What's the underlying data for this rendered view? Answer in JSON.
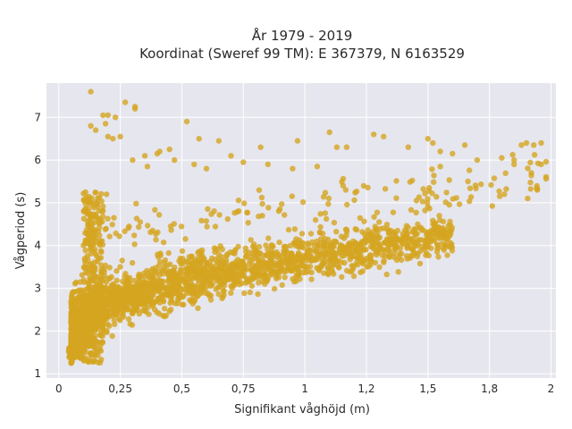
{
  "chart_data": {
    "type": "scatter",
    "title_line1": "År 1979 - 2019",
    "title_line2": "Koordinat (Sweref 99 TM): E 367379, N 6163529",
    "xlabel": "Signifikant våghöjd (m)",
    "ylabel": "Vågperiod (s)",
    "xlim": [
      -0.05,
      2.02
    ],
    "ylim": [
      0.9,
      7.8
    ],
    "x_ticks": [
      0,
      0.25,
      0.5,
      0.75,
      1,
      1.25,
      1.5,
      1.75,
      2
    ],
    "x_tick_labels": [
      "0",
      "0,25",
      "0,5",
      "0,75",
      "1",
      "1,2",
      "1,5",
      "1,8",
      "2"
    ],
    "y_ticks": [
      1,
      2,
      3,
      4,
      5,
      6,
      7
    ],
    "y_tick_labels": [
      "1",
      "2",
      "3",
      "4",
      "5",
      "6",
      "7"
    ],
    "grid": true,
    "colors": {
      "marker": "#d4a520",
      "plot_background": "#e6e6ee",
      "grid": "#ffffff"
    },
    "series": [
      {
        "outliers": [
          [
            0.13,
            7.6
          ],
          [
            0.27,
            7.35
          ],
          [
            0.31,
            7.25
          ],
          [
            0.31,
            7.2
          ],
          [
            0.18,
            7.05
          ],
          [
            0.2,
            7.05
          ],
          [
            0.23,
            7.0
          ],
          [
            0.13,
            6.8
          ],
          [
            0.15,
            6.7
          ],
          [
            0.2,
            6.55
          ],
          [
            0.25,
            6.55
          ],
          [
            0.52,
            6.9
          ],
          [
            0.57,
            6.5
          ],
          [
            0.45,
            6.25
          ],
          [
            0.65,
            6.45
          ],
          [
            0.82,
            6.3
          ],
          [
            0.97,
            6.45
          ],
          [
            1.1,
            6.65
          ],
          [
            1.13,
            6.3
          ],
          [
            1.17,
            6.3
          ],
          [
            1.28,
            6.6
          ],
          [
            1.32,
            6.55
          ],
          [
            1.42,
            6.3
          ],
          [
            1.5,
            6.5
          ],
          [
            1.52,
            6.4
          ],
          [
            1.55,
            6.2
          ],
          [
            1.6,
            6.15
          ],
          [
            1.65,
            6.35
          ],
          [
            1.7,
            6.0
          ],
          [
            1.8,
            6.05
          ],
          [
            1.85,
            6.0
          ],
          [
            1.88,
            6.35
          ],
          [
            1.9,
            6.4
          ],
          [
            1.93,
            6.35
          ],
          [
            1.96,
            6.4
          ],
          [
            1.85,
            5.9
          ],
          [
            1.96,
            5.9
          ],
          [
            1.55,
            5.85
          ],
          [
            0.41,
            6.2
          ],
          [
            0.4,
            6.15
          ],
          [
            0.35,
            6.1
          ],
          [
            0.3,
            6.0
          ],
          [
            0.36,
            5.85
          ],
          [
            0.55,
            5.9
          ],
          [
            0.6,
            5.8
          ],
          [
            0.7,
            6.1
          ],
          [
            0.75,
            5.95
          ],
          [
            0.85,
            5.9
          ],
          [
            0.95,
            5.8
          ],
          [
            1.05,
            5.85
          ],
          [
            0.19,
            6.85
          ],
          [
            0.22,
            6.5
          ],
          [
            0.47,
            6.0
          ]
        ]
      }
    ]
  }
}
